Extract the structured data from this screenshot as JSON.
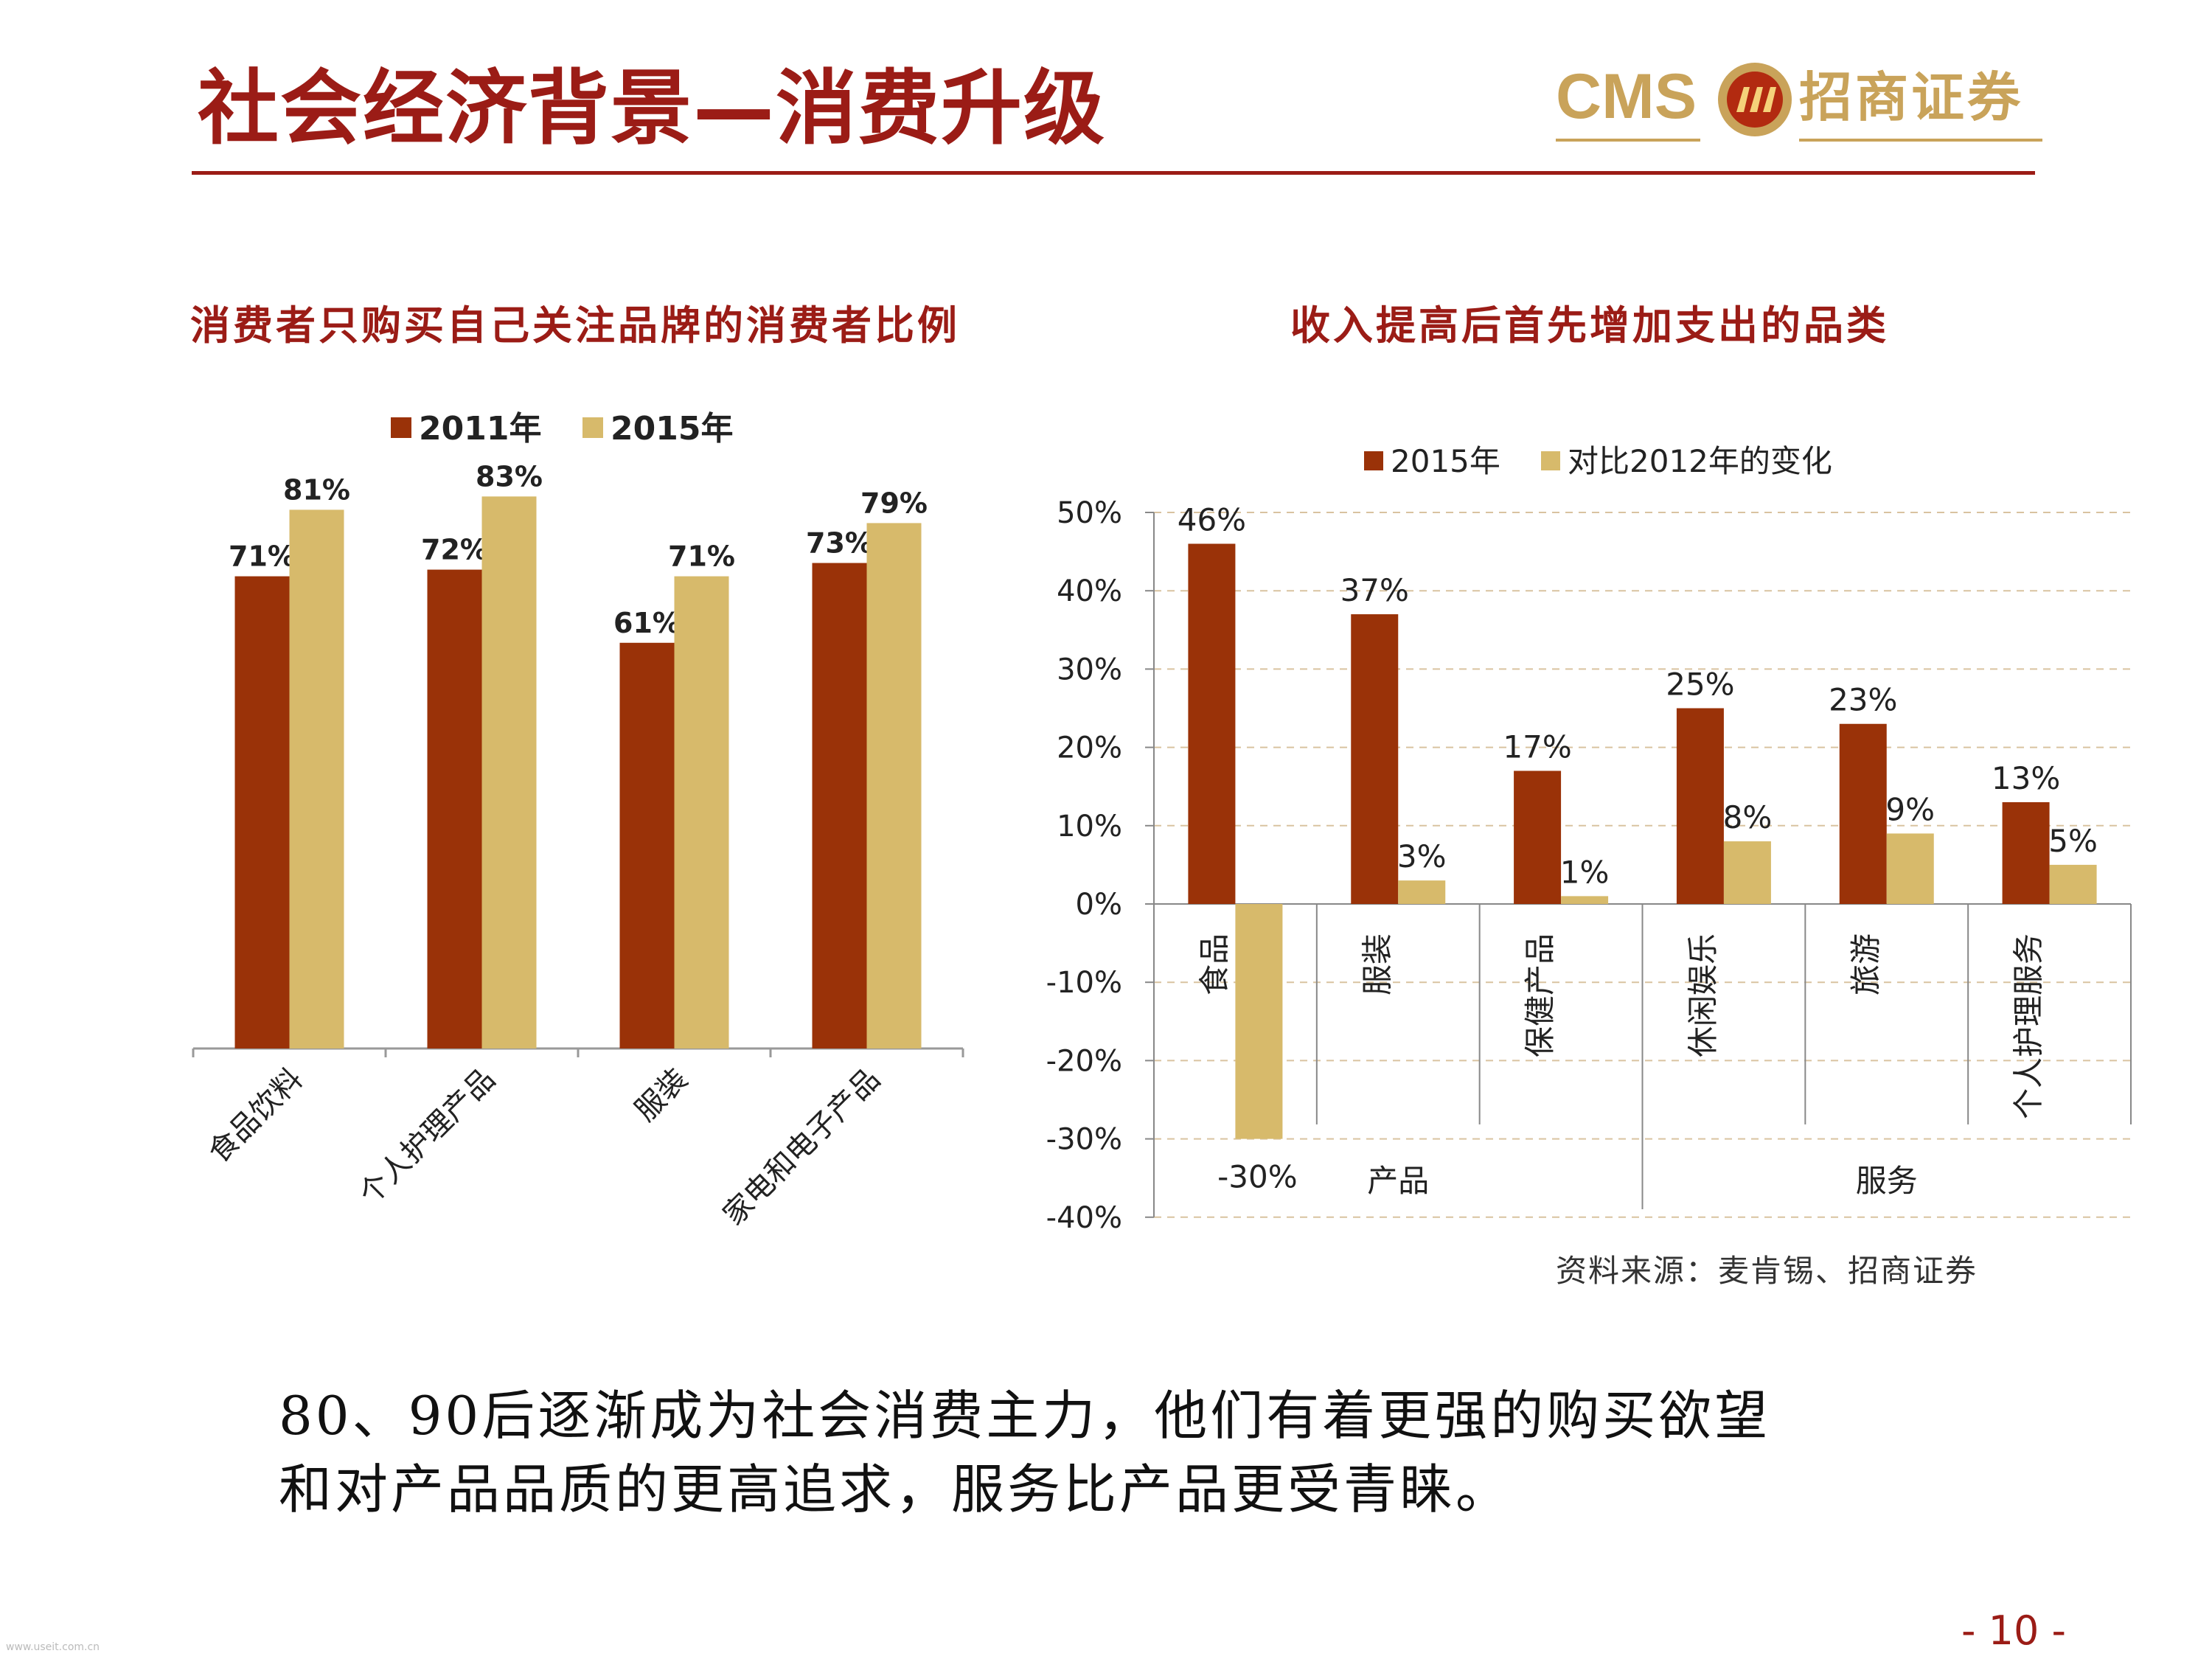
{
  "page": {
    "title": "社会经济背景—消费升级",
    "logo_en": "CMS",
    "logo_cn": "招商证券",
    "source": "资料来源：麦肯锡、招商证券",
    "body_line1": "80、90后逐渐成为社会消费主力，他们有着更强的购买欲望",
    "body_line2": "和对产品品质的更高追求，服务比产品更受青睐。",
    "page_number": "- 10 -",
    "watermark": "www.useit.com.cn",
    "colors": {
      "brand": "#9b1c16",
      "series1": "#9a3208",
      "series2": "#d7ba6b",
      "gold": "#c9a35a"
    }
  },
  "chart_data": [
    {
      "type": "bar",
      "title": "消费者只购买自己关注品牌的消费者比例",
      "categories": [
        "食品饮料",
        "个人护理产品",
        "服装",
        "家电和电子产品"
      ],
      "series": [
        {
          "name": "2011年",
          "values": [
            71,
            72,
            61,
            73
          ],
          "labels": [
            "71%",
            "72%",
            "61%",
            "73%"
          ]
        },
        {
          "name": "2015年",
          "values": [
            81,
            83,
            71,
            79
          ],
          "labels": [
            "81%",
            "83%",
            "71%",
            "79%"
          ]
        }
      ],
      "ylim": [
        0,
        100
      ],
      "legend_position": "top",
      "grid": false
    },
    {
      "type": "bar",
      "title": "收入提高后首先增加支出的品类",
      "categories": [
        "食品",
        "服装",
        "保健产品",
        "休闲娱乐",
        "旅游",
        "个人护理服务"
      ],
      "groups": [
        {
          "label": "产品",
          "categories": [
            "食品",
            "服装",
            "保健产品"
          ]
        },
        {
          "label": "服务",
          "categories": [
            "休闲娱乐",
            "旅游",
            "个人护理服务"
          ]
        }
      ],
      "series": [
        {
          "name": "2015年",
          "values": [
            46,
            37,
            17,
            25,
            23,
            13
          ],
          "labels": [
            "46%",
            "37%",
            "17%",
            "25%",
            "23%",
            "13%"
          ]
        },
        {
          "name": "对比2012年的变化",
          "values": [
            -30,
            3,
            1,
            8,
            9,
            5
          ],
          "labels": [
            "-30%",
            "3%",
            "1%",
            "8%",
            "9%",
            "5%"
          ]
        }
      ],
      "yticks": [
        "50%",
        "40%",
        "30%",
        "20%",
        "10%",
        "0%",
        "-10%",
        "-20%",
        "-30%",
        "-40%"
      ],
      "ylim": [
        -40,
        50
      ],
      "legend_position": "top",
      "grid": true
    }
  ]
}
